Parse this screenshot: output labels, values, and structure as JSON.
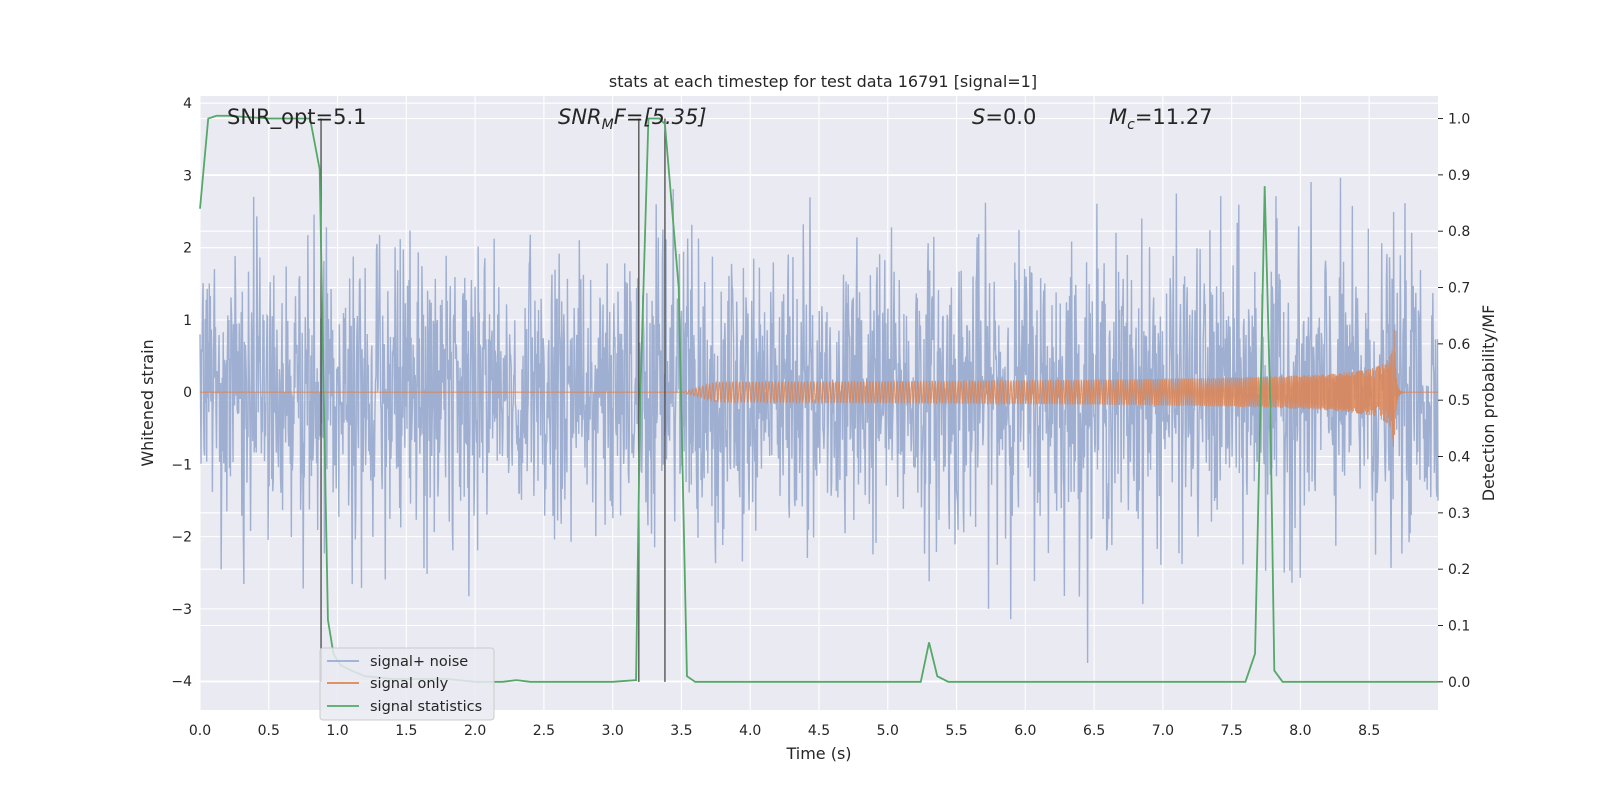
{
  "chart_data": {
    "type": "line",
    "title": "stats at each timestep for test data 16791 [signal=1]",
    "xlabel": "Time (s)",
    "ylabel": "Whitened strain",
    "y2label": "Detection probability/MF",
    "xlim": [
      0.0,
      9.0
    ],
    "ylim": [
      -4.4,
      4.1
    ],
    "y2lim": [
      -0.05,
      1.04
    ],
    "x_ticks": [
      "0.0",
      "0.5",
      "1.0",
      "1.5",
      "2.0",
      "2.5",
      "3.0",
      "3.5",
      "4.0",
      "4.5",
      "5.0",
      "5.5",
      "6.0",
      "6.5",
      "7.0",
      "7.5",
      "8.0",
      "8.5"
    ],
    "y_ticks": [
      "4",
      "3",
      "2",
      "1",
      "0",
      "−1",
      "−2",
      "−3",
      "−4"
    ],
    "y2_ticks": [
      "1.0",
      "0.9",
      "0.8",
      "0.7",
      "0.6",
      "0.5",
      "0.4",
      "0.3",
      "0.2",
      "0.1",
      "0.0"
    ],
    "grid": true,
    "legend_position": "lower-left",
    "colors": {
      "noise": "#9aaccf",
      "signal": "#dd8452",
      "stats": "#55a868",
      "vline": "#555555",
      "plot_bg": "#eaeaf2",
      "grid": "#ffffff"
    },
    "annotations": {
      "snr_opt": "SNR_opt=5.1",
      "snr_mf_base": "SNR",
      "snr_mf_sub": "M",
      "snr_mf_rest": "F=[5.35]",
      "s_italic": "S",
      "s_rest": "=0.0",
      "mc_base": "M",
      "mc_sub": "c",
      "mc_rest": "=11.27"
    },
    "vertical_lines_x": [
      0.88,
      3.19,
      3.38
    ],
    "series": [
      {
        "name": "signal+ noise",
        "description_values": "Gaussian-like whitened strain noise; envelope approx ±1.5 to ±2.5 with spikes up to about ±3.8"
      },
      {
        "name": "signal only",
        "chirp": {
          "start_x": 3.5,
          "peak_x": 8.68,
          "peak_amplitude": 1.0,
          "ringdown_end_x": 8.75
        }
      },
      {
        "name": "signal statistics",
        "x": [
          0.0,
          0.06,
          0.12,
          0.2,
          0.5,
          0.8,
          0.87,
          0.9,
          0.93,
          0.97,
          1.02,
          1.1,
          1.2,
          1.4,
          1.6,
          1.8,
          2.0,
          2.1,
          2.2,
          2.3,
          2.4,
          2.6,
          3.0,
          3.17,
          3.2,
          3.26,
          3.3,
          3.34,
          3.38,
          3.48,
          3.54,
          3.6,
          4.0,
          5.0,
          5.24,
          5.3,
          5.36,
          5.44,
          6.0,
          7.0,
          7.6,
          7.67,
          7.71,
          7.74,
          7.78,
          7.81,
          7.87,
          8.0,
          8.5,
          9.0
        ],
        "y": [
          0.84,
          1.0,
          1.005,
          1.005,
          1.0,
          1.0,
          0.91,
          0.5,
          0.11,
          0.05,
          0.03,
          0.02,
          0.01,
          0.005,
          0.005,
          0.005,
          0.0,
          0.0,
          0.0,
          0.003,
          0.0,
          0.0,
          0.0,
          0.003,
          0.5,
          1.0,
          1.0,
          1.0,
          0.99,
          0.7,
          0.01,
          0.0,
          0.0,
          0.0,
          0.0,
          0.07,
          0.01,
          0.0,
          0.0,
          0.0,
          0.0,
          0.05,
          0.5,
          0.88,
          0.5,
          0.02,
          0.0,
          0.0,
          0.0,
          0.0
        ]
      }
    ]
  }
}
